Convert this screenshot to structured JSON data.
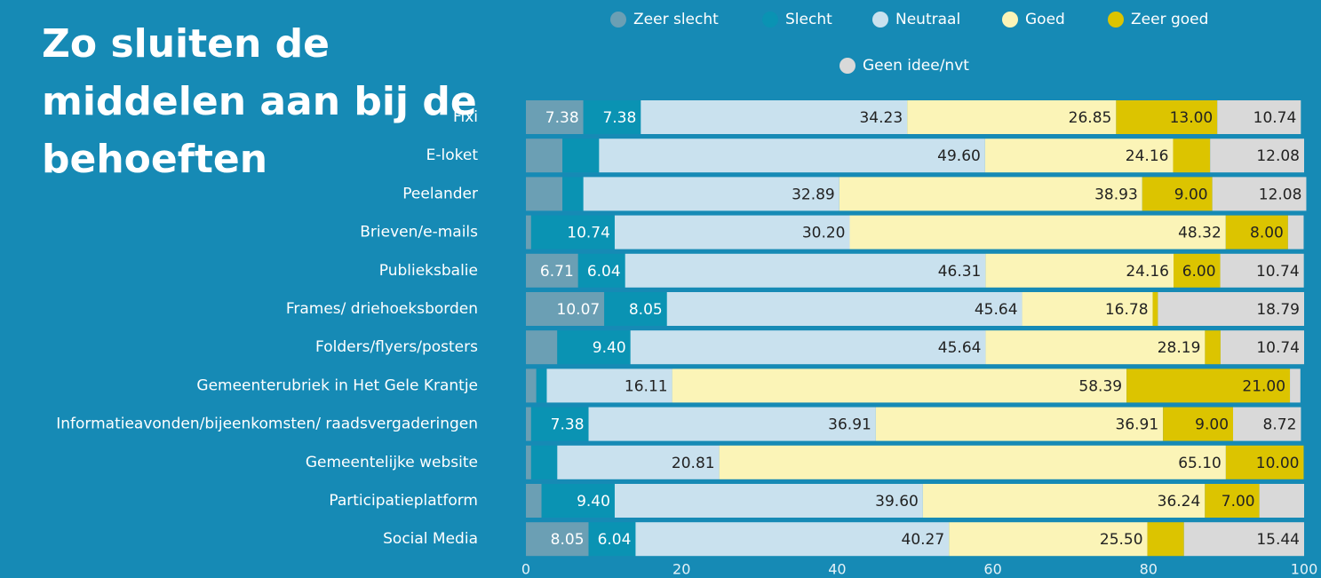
{
  "chart_data": {
    "type": "stacked_barh",
    "title": "Zo sluiten de middelen aan bij de behoeften",
    "categories": [
      "Fixi",
      "E-loket",
      "Peelander",
      "Brieven/e-mails",
      "Publieksbalie",
      "Frames/ driehoeksborden",
      "Folders/flyers/posters",
      "Gemeenterubriek in Het Gele Krantje",
      "Informatieavonden/bijeenkomsten/ raadsvergaderingen",
      "Gemeentelijke website",
      "Participatieplatform",
      "Social Media"
    ],
    "series": [
      {
        "name": "Zeer slecht",
        "color": "#6b9fb4",
        "values": [
          7.38,
          4.7,
          4.7,
          0.67,
          6.71,
          10.07,
          4.03,
          1.34,
          0.67,
          0.67,
          2.01,
          8.05
        ],
        "value_labels": [
          "7.38",
          null,
          null,
          null,
          "6.71",
          "10.07",
          null,
          null,
          null,
          null,
          null,
          "8.05"
        ]
      },
      {
        "name": "Slecht",
        "color": "#0a93b3",
        "values": [
          7.38,
          4.7,
          2.68,
          10.74,
          6.04,
          8.05,
          9.4,
          1.34,
          7.38,
          3.36,
          9.4,
          6.04
        ],
        "value_labels": [
          "7.38",
          null,
          null,
          "10.74",
          "6.04",
          "8.05",
          "9.40",
          null,
          "7.38",
          null,
          "9.40",
          "6.04"
        ]
      },
      {
        "name": "Neutraal",
        "color": "#c9e1ee",
        "values": [
          34.23,
          49.6,
          32.89,
          30.2,
          46.31,
          45.64,
          45.64,
          16.11,
          36.91,
          20.81,
          39.6,
          40.27
        ],
        "value_labels": [
          "34.23",
          "49.60",
          "32.89",
          "30.20",
          "46.31",
          "45.64",
          "45.64",
          "16.11",
          "36.91",
          "20.81",
          "39.60",
          "40.27"
        ]
      },
      {
        "name": "Goed",
        "color": "#fbf4b7",
        "values": [
          26.85,
          24.16,
          38.93,
          48.32,
          24.16,
          16.78,
          28.19,
          58.39,
          36.91,
          65.1,
          36.24,
          25.5
        ],
        "value_labels": [
          "26.85",
          "24.16",
          "38.93",
          "48.32",
          "24.16",
          "16.78",
          "28.19",
          "58.39",
          "36.91",
          "65.10",
          "36.24",
          "25.50"
        ]
      },
      {
        "name": "Zeer goed",
        "color": "#dcc400",
        "values": [
          13.0,
          4.76,
          9.0,
          8.0,
          6.0,
          0.67,
          2.0,
          21.0,
          9.0,
          10.0,
          7.0,
          4.7
        ],
        "value_labels": [
          "13.00",
          null,
          "9.00",
          "8.00",
          "6.00",
          null,
          null,
          "21.00",
          "9.00",
          "10.00",
          "7.00",
          null
        ]
      },
      {
        "name": "Geen idee/nvt",
        "color": "#d9d9d9",
        "values": [
          10.74,
          12.08,
          12.08,
          2.01,
          10.74,
          18.79,
          10.74,
          1.34,
          8.72,
          0,
          5.75,
          15.44
        ],
        "value_labels": [
          "10.74",
          "12.08",
          "12.08",
          null,
          "10.74",
          "18.79",
          "10.74",
          null,
          "8.72",
          null,
          null,
          "15.44"
        ]
      }
    ],
    "xlim": [
      0,
      100
    ],
    "xticks": [
      0,
      20,
      40,
      60,
      80,
      100
    ]
  }
}
